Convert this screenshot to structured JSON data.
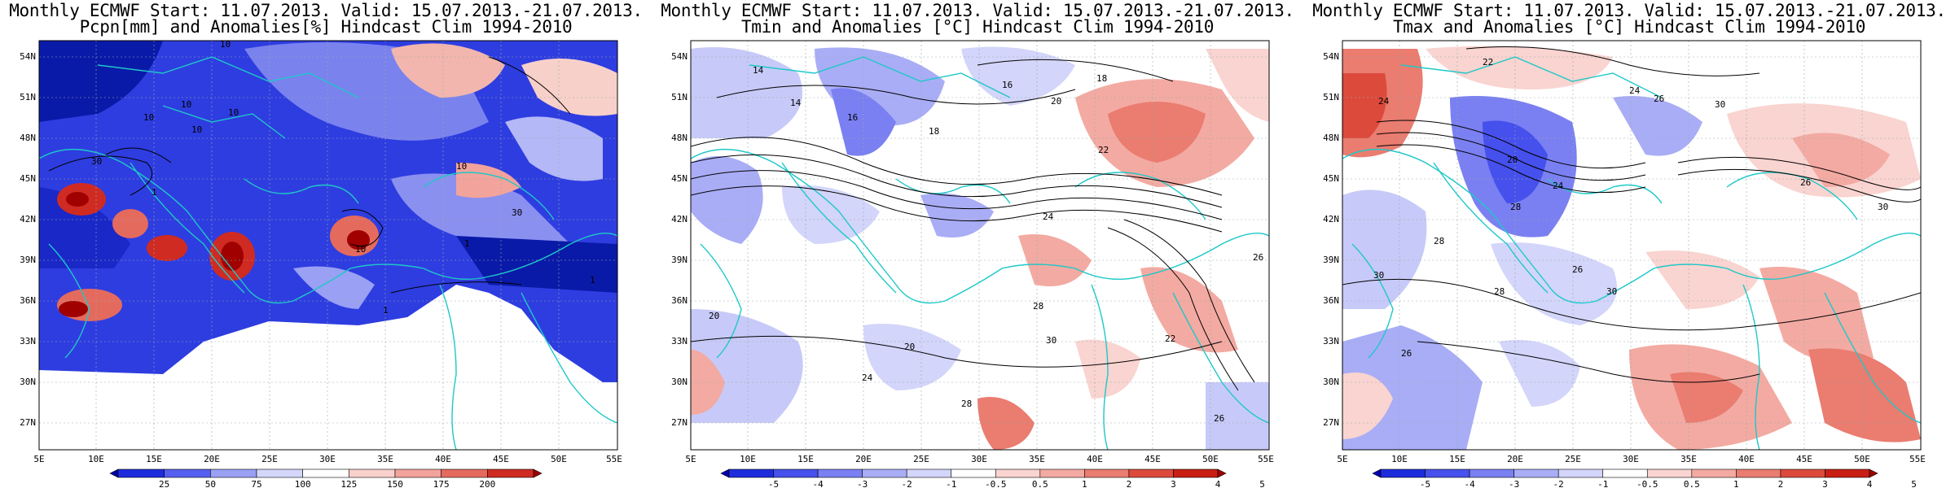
{
  "panels": [
    {
      "title_line1": "Monthly ECMWF Start: 11.07.2013. Valid: 15.07.2013.-21.07.2013.",
      "title_line2": "Pcpn[mm] and Anomalies[%] Hindcast Clim 1994-2010",
      "colorbar": {
        "labels": [
          "25",
          "50",
          "75",
          "100",
          "125",
          "150",
          "175",
          "200"
        ],
        "colors": [
          "#0000a8",
          "#1e2ddc",
          "#5560f0",
          "#9aa0f4",
          "#d4d7fa",
          "#ffffff",
          "#f9d0cc",
          "#f2a39b",
          "#e56a5e",
          "#cf2b22",
          "#a00000"
        ]
      },
      "contour_labels": [
        "10",
        "10",
        "10",
        "10",
        "10",
        "30",
        "1",
        "10",
        "1",
        "1",
        "10",
        "1",
        "30"
      ]
    },
    {
      "title_line1": "Monthly ECMWF Start: 11.07.2013. Valid: 15.07.2013.-21.07.2013.",
      "title_line2": "Tmin and Anomalies [°C] Hindcast Clim 1994-2010",
      "colorbar": {
        "labels": [
          "-5",
          "-4",
          "-3",
          "-2",
          "-1",
          "-0.5",
          "0.5",
          "1",
          "2",
          "3",
          "4",
          "5"
        ],
        "colors": [
          "#0000b4",
          "#1e2ddc",
          "#4650ec",
          "#7a80f2",
          "#a9adf6",
          "#d3d5fa",
          "#ffffff",
          "#f9d4d0",
          "#f3aaa2",
          "#ea7c70",
          "#dc4a3c",
          "#c81e14",
          "#a00000"
        ]
      },
      "contour_labels": [
        "14",
        "14",
        "16",
        "18",
        "20",
        "18",
        "16",
        "22",
        "20",
        "24",
        "28",
        "30",
        "20",
        "26",
        "22",
        "24",
        "26",
        "28"
      ]
    },
    {
      "title_line1": "Monthly ECMWF Start: 11.07.2013. Valid: 15.07.2013.-21.07.2013.",
      "title_line2": "Tmax and Anomalies [°C] Hindcast Clim 1994-2010",
      "colorbar": {
        "labels": [
          "-5",
          "-4",
          "-3",
          "-2",
          "-1",
          "-0.5",
          "0.5",
          "1",
          "2",
          "3",
          "4",
          "5"
        ],
        "colors": [
          "#0000b4",
          "#1e2ddc",
          "#4650ec",
          "#7a80f2",
          "#a9adf6",
          "#d3d5fa",
          "#ffffff",
          "#f9d4d0",
          "#f3aaa2",
          "#ea7c70",
          "#dc4a3c",
          "#c81e14",
          "#a00000"
        ]
      },
      "contour_labels": [
        "22",
        "24",
        "26",
        "30",
        "24",
        "20",
        "26",
        "28",
        "30",
        "24",
        "28",
        "26",
        "30",
        "28",
        "26",
        "30"
      ]
    }
  ],
  "axes": {
    "lat_labels": [
      "54N",
      "51N",
      "48N",
      "45N",
      "42N",
      "39N",
      "36N",
      "33N",
      "30N",
      "27N"
    ],
    "lon_labels": [
      "5E",
      "10E",
      "15E",
      "20E",
      "25E",
      "30E",
      "35E",
      "40E",
      "45E",
      "50E",
      "55E"
    ]
  }
}
